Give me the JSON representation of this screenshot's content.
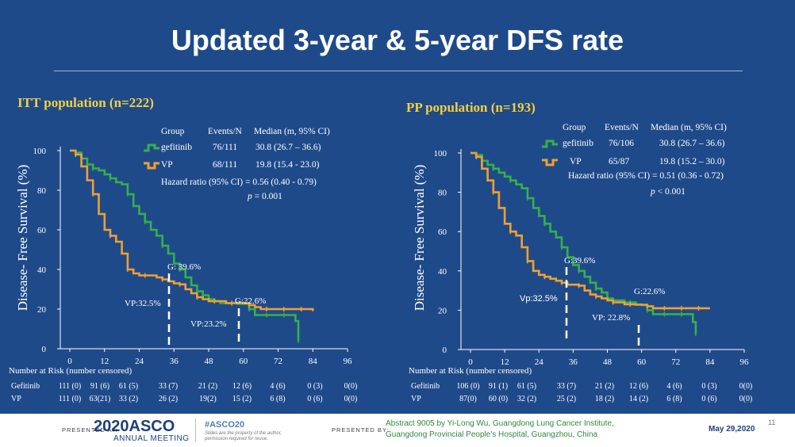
{
  "title": "Updated 3-year & 5-year DFS rate",
  "colors": {
    "gefitinib": "#36b04a",
    "vp": "#f0a030",
    "title": "#f3d13a"
  },
  "chart_data": [
    {
      "type": "line",
      "panel_title": "ITT population",
      "panel_n": "(n=222)",
      "ylabel": "Disease- Free Survival (%)",
      "xlabel": "Number at Risk (number censored)",
      "xlim": [
        0,
        96
      ],
      "ylim": [
        0,
        100
      ],
      "xticks": [
        "0",
        "12",
        "24",
        "36",
        "48",
        "60",
        "72",
        "84",
        "96"
      ],
      "yticks": [
        "0",
        "20",
        "40",
        "60",
        "80",
        "100"
      ],
      "stats": {
        "header": [
          "Group",
          "Events/N",
          "Median (m, 95% CI)"
        ],
        "rows": [
          [
            "gefitinib",
            "76/111",
            "30.8 (26.7 – 36.6)"
          ],
          [
            "VP",
            "68/111",
            "19.8 (15.4 - 23.0)"
          ]
        ],
        "hr": "Hazard ratio (95% CI) = 0.56 (0.40 - 0.79)",
        "p_label": "p",
        "p_value": "= 0.001"
      },
      "annotations": [
        "G: 39.6%",
        "VP:32.5%",
        "G:22.6%",
        "VP:23.2%"
      ],
      "series": [
        {
          "name": "gefitinib",
          "x": [
            0,
            2,
            4,
            6,
            8,
            10,
            12,
            14,
            16,
            18,
            20,
            22,
            24,
            26,
            28,
            30,
            32,
            34,
            36,
            38,
            40,
            42,
            44,
            46,
            48,
            50,
            52,
            54,
            56,
            58,
            60,
            62,
            64,
            66,
            68,
            70,
            72,
            74,
            76,
            78,
            79
          ],
          "y": [
            100,
            99,
            96,
            93,
            91,
            90,
            88,
            86,
            84,
            83,
            78,
            72,
            68,
            64,
            60,
            57,
            52,
            48,
            43,
            40,
            36,
            32,
            29,
            27,
            25,
            24,
            23,
            23,
            23,
            22.6,
            22.6,
            20,
            17,
            17,
            17,
            17,
            17,
            17,
            17,
            14,
            4
          ]
        },
        {
          "name": "VP",
          "x": [
            0,
            2,
            4,
            6,
            8,
            10,
            12,
            14,
            16,
            18,
            20,
            22,
            24,
            26,
            28,
            30,
            32,
            34,
            36,
            38,
            40,
            42,
            44,
            46,
            48,
            50,
            52,
            54,
            56,
            58,
            60,
            62,
            64,
            66,
            68,
            70,
            72,
            74,
            76,
            78,
            80,
            82,
            84
          ],
          "y": [
            100,
            98,
            92,
            85,
            78,
            68,
            60,
            57,
            54,
            48,
            40,
            38,
            37,
            37,
            37,
            36,
            35,
            34,
            33,
            32.5,
            30,
            28,
            26,
            25,
            24,
            24,
            24,
            23,
            23,
            23.2,
            23,
            22,
            21,
            20,
            20,
            20,
            20,
            20,
            20,
            20,
            20,
            20,
            19
          ]
        }
      ],
      "at_risk": {
        "rows": [
          {
            "label": "Gefitinib",
            "values": [
              "111 (0)",
              "91 (6)",
              "61 (5)",
              "33 (7)",
              "21 (2)",
              "12 (6)",
              "4 (6)",
              "0 (3)",
              "0(0)"
            ]
          },
          {
            "label": "VP",
            "values": [
              "111 (0)",
              "63(21)",
              "33 (2)",
              "26 (2)",
              "19(2)",
              "15 (2)",
              "6 (8)",
              "0 (6)",
              "0(0)"
            ]
          }
        ]
      }
    },
    {
      "type": "line",
      "panel_title": "PP population",
      "panel_n": "(n=193)",
      "ylabel": "Disease- Free Survival (%)",
      "xlabel": "Number at Risk (number censored)",
      "xlim": [
        0,
        96
      ],
      "ylim": [
        0,
        100
      ],
      "xticks": [
        "0",
        "12",
        "24",
        "36",
        "48",
        "60",
        "72",
        "84",
        "96"
      ],
      "yticks": [
        "0",
        "20",
        "40",
        "60",
        "80",
        "100"
      ],
      "stats": {
        "header": [
          "Group",
          "Events/N",
          "Median (m, 95% CI)"
        ],
        "rows": [
          [
            "gefitinib",
            "76/106",
            "30.8 (26.7 – 36.6)"
          ],
          [
            "VP",
            "65/87",
            "19.8 (15.2 – 30.0)"
          ]
        ],
        "hr": "Hazard ratio (95% CI) = 0.51 (0.36 - 0.72)",
        "p_label": "p",
        "p_value": "< 0.001"
      },
      "annotations": [
        "G:39.6%",
        "Vp:32.5%",
        "G:22.6%",
        "VP: 22.8%"
      ],
      "series": [
        {
          "name": "gefitinib",
          "x": [
            0,
            2,
            4,
            6,
            8,
            10,
            12,
            14,
            16,
            18,
            20,
            22,
            24,
            26,
            28,
            30,
            32,
            34,
            36,
            38,
            40,
            42,
            44,
            46,
            48,
            50,
            52,
            54,
            56,
            58,
            60,
            62,
            64,
            66,
            68,
            70,
            72,
            74,
            76,
            78,
            79
          ],
          "y": [
            100,
            99,
            96,
            94,
            92,
            90,
            88,
            86,
            84,
            82,
            77,
            72,
            68,
            64,
            60,
            57,
            52,
            47,
            43,
            40,
            37,
            34,
            31,
            29,
            26,
            25,
            25,
            24,
            24,
            23,
            22.6,
            20,
            18,
            18,
            18,
            18,
            18,
            18,
            18,
            14,
            8
          ]
        },
        {
          "name": "VP",
          "x": [
            0,
            2,
            4,
            6,
            8,
            10,
            12,
            14,
            16,
            18,
            20,
            22,
            24,
            26,
            28,
            30,
            32,
            34,
            36,
            38,
            40,
            42,
            44,
            46,
            48,
            50,
            52,
            54,
            56,
            58,
            60,
            62,
            64,
            66,
            68,
            70,
            72,
            74,
            76,
            78,
            80,
            82,
            84
          ],
          "y": [
            100,
            98,
            92,
            86,
            80,
            72,
            64,
            60,
            58,
            52,
            45,
            40,
            38,
            37,
            36,
            35,
            34,
            33,
            33,
            32.5,
            30,
            28,
            27,
            26,
            25,
            24,
            24,
            23,
            23,
            22.8,
            22.8,
            22,
            21,
            21,
            21,
            21,
            21,
            21,
            21,
            21,
            21,
            21,
            21
          ]
        }
      ],
      "at_risk": {
        "rows": [
          {
            "label": "Gefitinib",
            "values": [
              "106 (0)",
              "91 (1)",
              "61 (5)",
              "33 (7)",
              "21 (2)",
              "12 (6)",
              "4 (6)",
              "0 (3)",
              "0(0)"
            ]
          },
          {
            "label": "VP",
            "values": [
              "87(0)",
              "60 (0)",
              "32 (2)",
              "25 (2)",
              "18 (2)",
              "14 (2)",
              "6 (8)",
              "0 (6)",
              "0(0)"
            ]
          }
        ]
      }
    }
  ],
  "footer": {
    "presented_at": "PRESENTED AT:",
    "asco_year": "2020",
    "asco_name": "ASCO",
    "annual_meeting": "ANNUAL MEETING",
    "hashtag": "#ASCO20",
    "fine_print": "Slides are the property of the author, permission required for reuse.",
    "presented_by": "PRESENTED BY:",
    "abstract_line1": "Abstract 9005 by Yi-Long Wu, Guangdong Lung Cancer Institute,",
    "abstract_line2": "Guangdong Provincial People's Hospital, Guangzhou, China",
    "date": "May 29,2020",
    "page": "11"
  }
}
